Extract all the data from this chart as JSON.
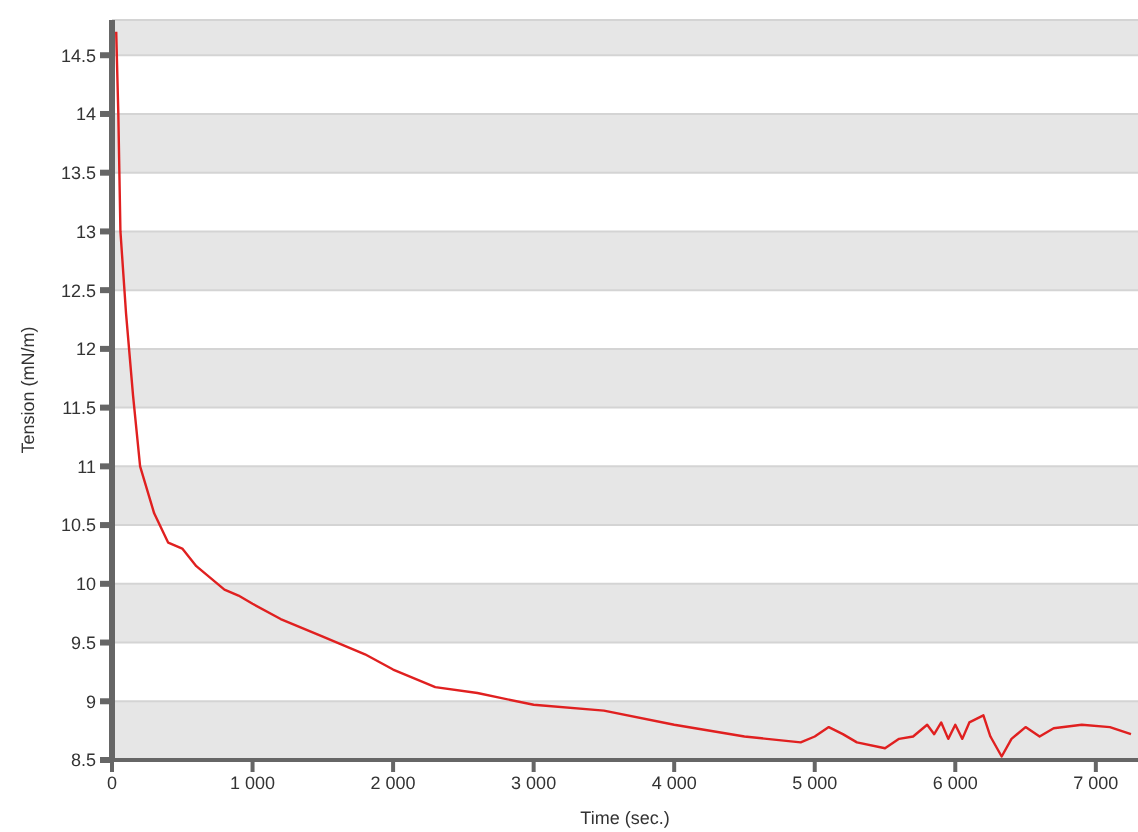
{
  "chart_data": {
    "type": "line",
    "xlabel": "Time (sec.)",
    "ylabel": "Tension (mN/m)",
    "xlim": [
      0,
      7300
    ],
    "ylim": [
      8.5,
      14.8
    ],
    "xticks": [
      0,
      {
        "value": 1000,
        "label": "1 000"
      },
      {
        "value": 2000,
        "label": "2 000"
      },
      {
        "value": 3000,
        "label": "3 000"
      },
      {
        "value": 4000,
        "label": "4 000"
      },
      {
        "value": 5000,
        "label": "5 000"
      },
      {
        "value": 6000,
        "label": "6 000"
      },
      {
        "value": 7000,
        "label": "7 000"
      }
    ],
    "yticks": [
      8.5,
      9,
      9.5,
      10,
      10.5,
      11,
      11.5,
      12,
      12.5,
      13,
      13.5,
      14,
      14.5
    ],
    "grid": "y",
    "marker": "none",
    "line_style": "solid",
    "series": [
      {
        "color": "#e02020",
        "x": [
          30,
          45,
          60,
          100,
          150,
          200,
          300,
          400,
          500,
          600,
          800,
          900,
          1000,
          1200,
          1500,
          1800,
          2000,
          2300,
          2600,
          3000,
          3500,
          4000,
          4500,
          4900,
          5000,
          5100,
          5200,
          5300,
          5500,
          5600,
          5700,
          5800,
          5850,
          5900,
          5950,
          6000,
          6050,
          6100,
          6200,
          6250,
          6330,
          6400,
          6500,
          6600,
          6700,
          6900,
          7100,
          7250
        ],
        "values": [
          14.7,
          14.0,
          13.0,
          12.3,
          11.6,
          11.0,
          10.6,
          10.35,
          10.3,
          10.15,
          9.95,
          9.9,
          9.83,
          9.7,
          9.55,
          9.4,
          9.27,
          9.12,
          9.07,
          8.97,
          8.92,
          8.8,
          8.7,
          8.65,
          8.7,
          8.78,
          8.72,
          8.65,
          8.6,
          8.68,
          8.7,
          8.8,
          8.72,
          8.82,
          8.68,
          8.8,
          8.68,
          8.82,
          8.88,
          8.7,
          8.53,
          8.68,
          8.78,
          8.7,
          8.77,
          8.8,
          8.78,
          8.72
        ]
      }
    ]
  }
}
